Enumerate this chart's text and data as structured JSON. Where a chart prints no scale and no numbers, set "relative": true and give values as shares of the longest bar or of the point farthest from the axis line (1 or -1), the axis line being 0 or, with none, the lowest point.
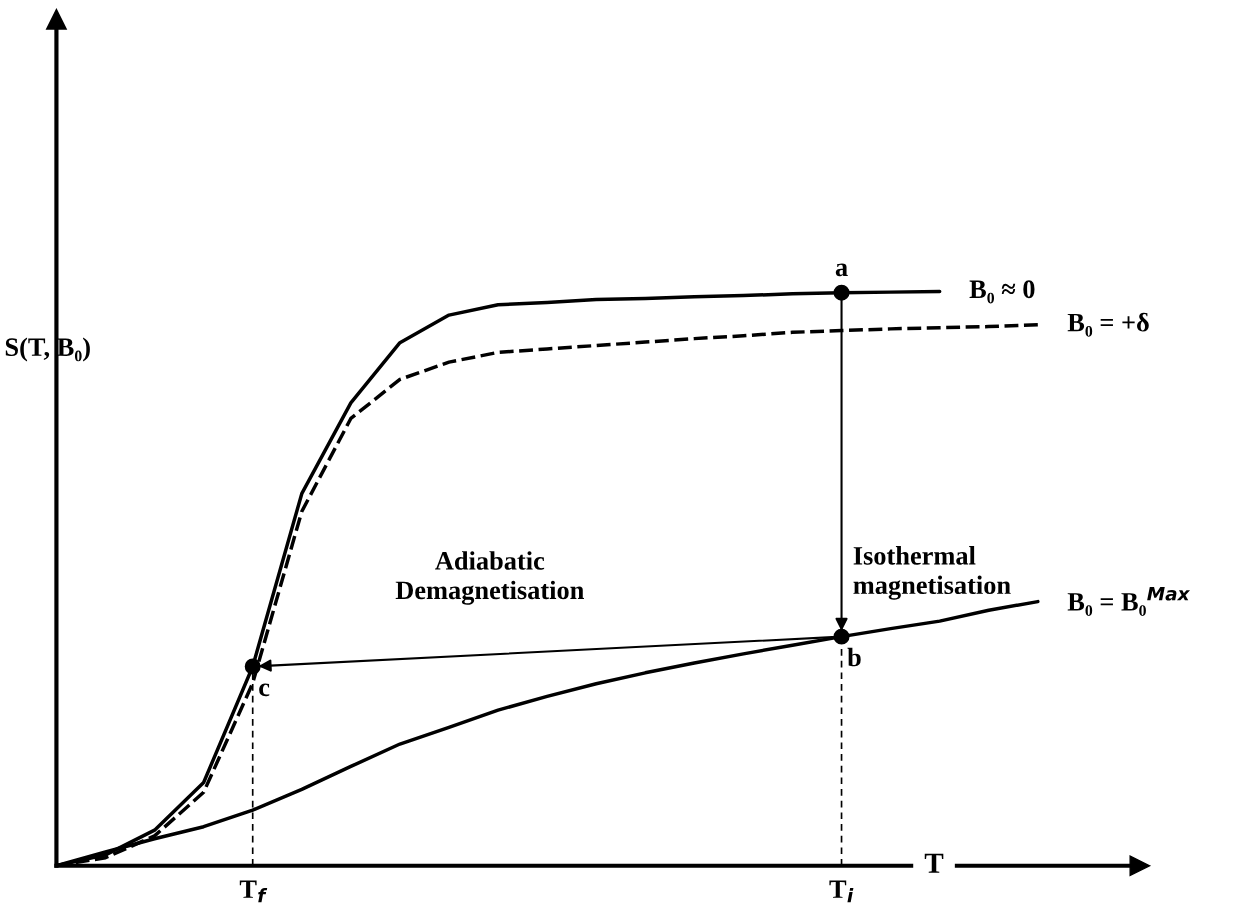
{
  "chart_data": {
    "type": "line",
    "relative": true,
    "xlabel": "T",
    "ylabel": "S(T, B₀)",
    "tick_labels": "x",
    "categories": [
      null,
      null,
      null,
      null,
      "T$_{f}$",
      null,
      null,
      null,
      null,
      null,
      null,
      null,
      null,
      null,
      null,
      null,
      "T$_{i}$",
      null,
      null,
      null,
      null
    ],
    "series": [
      {
        "name": "B₀ ≈ 0",
        "color": "#000000",
        "line_style": "solid",
        "values": [
          0,
          0.019,
          0.062,
          0.145,
          0.347,
          0.648,
          0.806,
          0.911,
          0.959,
          0.977,
          0.981,
          0.986,
          0.988,
          0.991,
          0.993,
          0.996,
          0.998,
          0.999,
          1.0,
          null,
          null
        ]
      },
      {
        "name": "B₀ = +δ",
        "color": "#000000",
        "line_style": "dashed",
        "values": [
          0,
          0.014,
          0.052,
          0.128,
          0.318,
          0.617,
          0.779,
          0.847,
          0.877,
          0.894,
          0.9,
          0.906,
          0.912,
          0.918,
          0.923,
          0.929,
          0.932,
          0.935,
          0.937,
          0.939,
          0.942
        ]
      },
      {
        "name": "B₀ = B₀$^{Max}$",
        "color": "#000000",
        "line_style": "solid",
        "values": [
          0,
          0.024,
          0.047,
          0.068,
          0.097,
          0.133,
          0.173,
          0.212,
          0.241,
          0.271,
          0.295,
          0.317,
          0.336,
          0.353,
          0.369,
          0.384,
          0.399,
          0.413,
          0.426,
          0.445,
          0.46
        ]
      },
      {
        "type": "scatter",
        "marker": "circle",
        "color": "#000000",
        "values": [
          null,
          null,
          null,
          null,
          null,
          null,
          null,
          null,
          null,
          null,
          null,
          null,
          null,
          null,
          null,
          null,
          0.998,
          null,
          null,
          null,
          null
        ]
      },
      {
        "type": "scatter",
        "marker": "circle",
        "color": "#000000",
        "values": [
          null,
          null,
          null,
          null,
          0.347,
          null,
          null,
          null,
          null,
          null,
          null,
          null,
          null,
          null,
          null,
          null,
          0.399,
          null,
          null,
          null,
          null
        ]
      }
    ],
    "annotations": [
      "Isothermal\nmagnetisation",
      "Adiabatic\nDemagnetisation",
      "a",
      "b",
      "c"
    ]
  }
}
